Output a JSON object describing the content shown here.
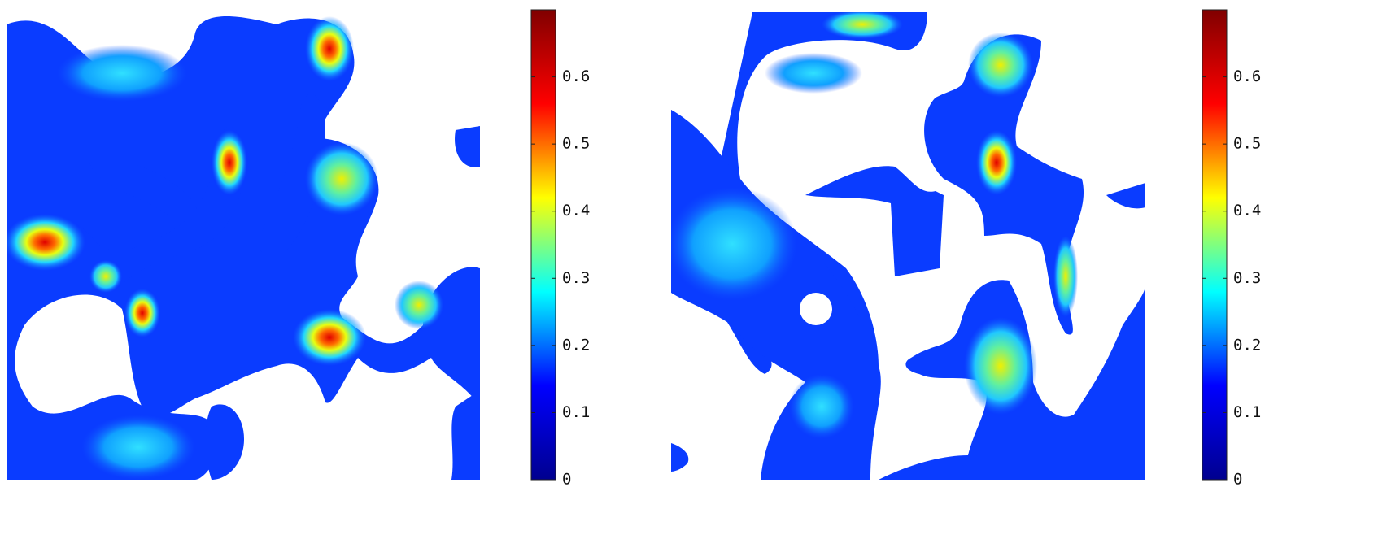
{
  "chart_data": [
    {
      "type": "heatmap",
      "colormap": "jet",
      "clim": [
        0,
        0.7
      ],
      "cticks": [
        0,
        0.1,
        0.2,
        0.3,
        0.4,
        0.5,
        0.6
      ]
    },
    {
      "type": "heatmap",
      "colormap": "jet",
      "clim": [
        0,
        0.7
      ],
      "cticks": [
        0,
        0.1,
        0.2,
        0.3,
        0.4,
        0.5,
        0.6
      ]
    }
  ]
}
